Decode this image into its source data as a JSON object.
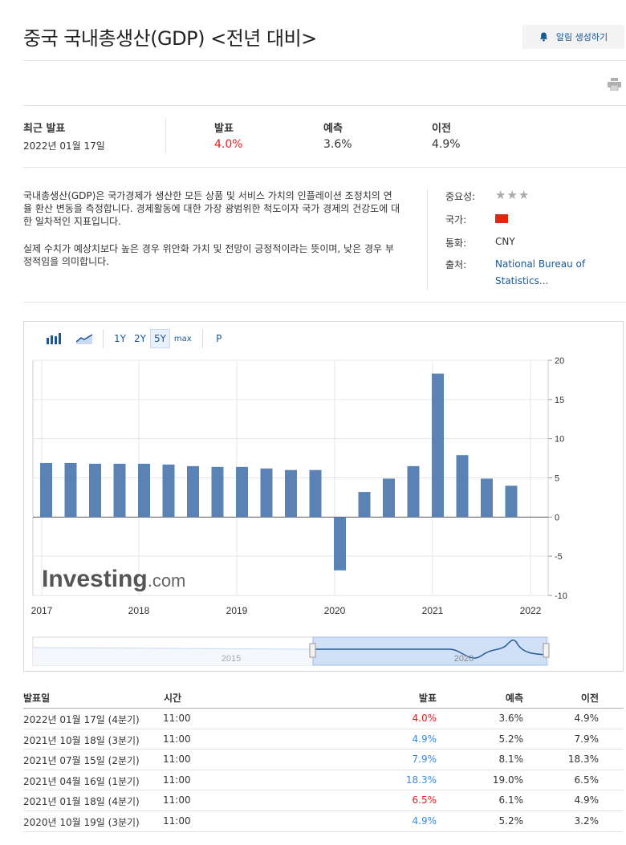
{
  "header": {
    "title": "중국 국내총생산(GDP) <전년 대비>",
    "alert_button": "알림 생성하기"
  },
  "stats": {
    "latest_label": "최근 발표",
    "latest_date": "2022년 01월 17일",
    "actual_label": "발표",
    "actual_value": "4.0%",
    "forecast_label": "예측",
    "forecast_value": "3.6%",
    "previous_label": "이전",
    "previous_value": "4.9%",
    "actual_color": "#e02020"
  },
  "description": {
    "para1": "국내총생산(GDP)은 국가경제가 생산한 모든 상품 및 서비스 가치의 인플레이션 조정치의 연율 환산 변동을 측정합니다. 경제활동에 대한 가장 광범위한 척도이자 국가 경제의 건강도에 대한 일차적인 지표입니다.",
    "para2": "실제 수치가 예상치보다 높은 경우 위안화 가치 및 전망이 긍정적이라는 뜻이며, 낮은 경우 부정적임을 의미합니다."
  },
  "meta": {
    "importance_label": "중요성:",
    "importance_stars": "★★★",
    "country_label": "국가:",
    "country_flag_icon": "china-flag-icon",
    "currency_label": "통화:",
    "currency_value": "CNY",
    "source_label": "출처:",
    "source_value": "National Bureau of Statistics..."
  },
  "toolbar": {
    "range_1y": "1Y",
    "range_2y": "2Y",
    "range_5y": "5Y",
    "range_max": "max",
    "p_button": "P",
    "active_range": "5Y"
  },
  "chart_data": {
    "type": "bar",
    "x": [
      "2017 Q1",
      "2017 Q2",
      "2017 Q3",
      "2017 Q4",
      "2018 Q1",
      "2018 Q2",
      "2018 Q3",
      "2018 Q4",
      "2019 Q1",
      "2019 Q2",
      "2019 Q3",
      "2019 Q4",
      "2020 Q1",
      "2020 Q2",
      "2020 Q3",
      "2020 Q4",
      "2021 Q1",
      "2021 Q2",
      "2021 Q3",
      "2021 Q4"
    ],
    "values": [
      6.9,
      6.9,
      6.8,
      6.8,
      6.8,
      6.7,
      6.5,
      6.4,
      6.4,
      6.2,
      6.0,
      6.0,
      -6.8,
      3.2,
      4.9,
      6.5,
      18.3,
      7.9,
      4.9,
      4.0
    ],
    "x_tick_labels": [
      "2017",
      "2018",
      "2019",
      "2020",
      "2021",
      "2022"
    ],
    "y_tick_labels": [
      "20",
      "15",
      "10",
      "5",
      "0",
      "-5",
      "-10"
    ],
    "ylim": [
      -10,
      20
    ],
    "bar_color": "#5a82b4",
    "watermark": "Investing",
    "watermark_suffix": ".com",
    "navigator_labels": [
      "2015",
      "2020"
    ]
  },
  "table": {
    "headers": {
      "date": "발표일",
      "time": "시간",
      "actual": "발표",
      "forecast": "예측",
      "previous": "이전"
    },
    "rows": [
      {
        "date": "2022년 01월 17일 (4분기)",
        "time": "11:00",
        "actual": "4.0%",
        "forecast": "3.6%",
        "previous": "4.9%",
        "actual_color": "red"
      },
      {
        "date": "2021년 10월 18일 (3분기)",
        "time": "11:00",
        "actual": "4.9%",
        "forecast": "5.2%",
        "previous": "7.9%",
        "actual_color": "blue"
      },
      {
        "date": "2021년 07월 15일 (2분기)",
        "time": "11:00",
        "actual": "7.9%",
        "forecast": "8.1%",
        "previous": "18.3%",
        "actual_color": "blue"
      },
      {
        "date": "2021년 04월 16일 (1분기)",
        "time": "11:00",
        "actual": "18.3%",
        "forecast": "19.0%",
        "previous": "6.5%",
        "actual_color": "blue"
      },
      {
        "date": "2021년 01월 18일 (4분기)",
        "time": "11:00",
        "actual": "6.5%",
        "forecast": "6.1%",
        "previous": "4.9%",
        "actual_color": "red"
      },
      {
        "date": "2020년 10월 19일 (3분기)",
        "time": "11:00",
        "actual": "4.9%",
        "forecast": "5.2%",
        "previous": "3.2%",
        "actual_color": "blue"
      }
    ]
  }
}
